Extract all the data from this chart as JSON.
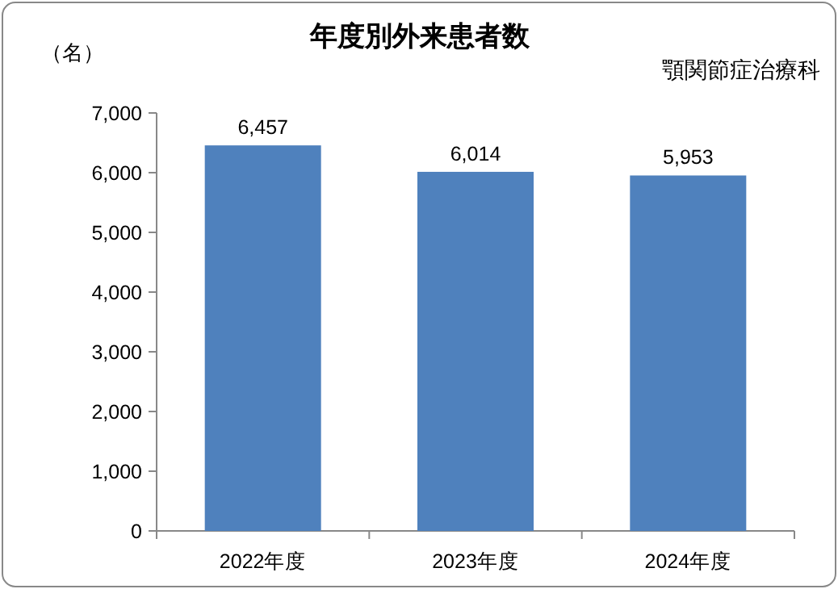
{
  "chart_data": {
    "type": "bar",
    "title": "年度別外来患者数",
    "ylabel": "（名）",
    "annotations": [
      "顎関節症治療科"
    ],
    "categories": [
      "2022年度",
      "2023年度",
      "2024年度"
    ],
    "values": [
      6457,
      6014,
      5953
    ],
    "value_labels": [
      "6,457",
      "6,014",
      "5,953"
    ],
    "color": "#4f81bd",
    "ylim": [
      0,
      7000
    ],
    "yticks": [
      0,
      {
        "value": 1000,
        "label": "1,000"
      },
      {
        "value": 2000,
        "label": "2,000"
      },
      {
        "value": 3000,
        "label": "3,000"
      },
      {
        "value": 4000,
        "label": "4,000"
      },
      {
        "value": 5000,
        "label": "5,000"
      },
      {
        "value": 6000,
        "label": "6,000"
      },
      {
        "value": 7000,
        "label": "7,000"
      }
    ],
    "grid": false
  }
}
